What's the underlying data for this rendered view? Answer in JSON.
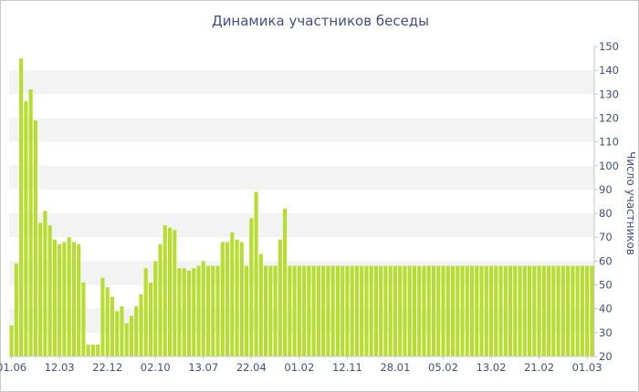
{
  "chart_data": {
    "type": "bar",
    "title": "Динамика участников беседы",
    "ylabel": "Число участников",
    "xlabel": "",
    "ylim": [
      20,
      150
    ],
    "y_ticks": [
      20,
      30,
      40,
      50,
      60,
      70,
      80,
      90,
      100,
      110,
      120,
      130,
      140,
      150
    ],
    "y_axis_position": "right",
    "grid": "alternating horizontal bands",
    "x_tick_labels": [
      {
        "index": 0,
        "label": "01.06"
      },
      {
        "index": 10,
        "label": "12.03"
      },
      {
        "index": 20,
        "label": "22.12"
      },
      {
        "index": 30,
        "label": "02.10"
      },
      {
        "index": 40,
        "label": "13.07"
      },
      {
        "index": 50,
        "label": "22.04"
      },
      {
        "index": 60,
        "label": "01.02"
      },
      {
        "index": 70,
        "label": "12.11"
      },
      {
        "index": 80,
        "label": "28.01"
      },
      {
        "index": 90,
        "label": "05.02"
      },
      {
        "index": 100,
        "label": "13.02"
      },
      {
        "index": 110,
        "label": "21.02"
      },
      {
        "index": 120,
        "label": "01.03"
      }
    ],
    "values": [
      33,
      59,
      145,
      127,
      132,
      119,
      76,
      81,
      75,
      69,
      67,
      68,
      70,
      68,
      67,
      51,
      25,
      25,
      25,
      53,
      49,
      45,
      39,
      41,
      34,
      37,
      41,
      46,
      57,
      51,
      60,
      67,
      75,
      74,
      73,
      57,
      57,
      56,
      57,
      58,
      60,
      58,
      58,
      58,
      68,
      68,
      72,
      69,
      68,
      58,
      78,
      89,
      63,
      58,
      58,
      58,
      69,
      82,
      58,
      58,
      58,
      58,
      58,
      58,
      58,
      58,
      58,
      58,
      58,
      58,
      58,
      58,
      58,
      58,
      58,
      58,
      58,
      58,
      58,
      58,
      58,
      58,
      58,
      58,
      58,
      58,
      58,
      58,
      58,
      58,
      58,
      58,
      58,
      58,
      58,
      58,
      58,
      58,
      58,
      58,
      58,
      58,
      58,
      58,
      58,
      58,
      58,
      58,
      58,
      58,
      58,
      58,
      58,
      58,
      58,
      58,
      58,
      58,
      58,
      58,
      58,
      58
    ],
    "colors": {
      "bar": "#b6dd2f",
      "band": "#f3f3f3",
      "text": "#3e4f8a",
      "axis": "#c8c8c8"
    }
  }
}
